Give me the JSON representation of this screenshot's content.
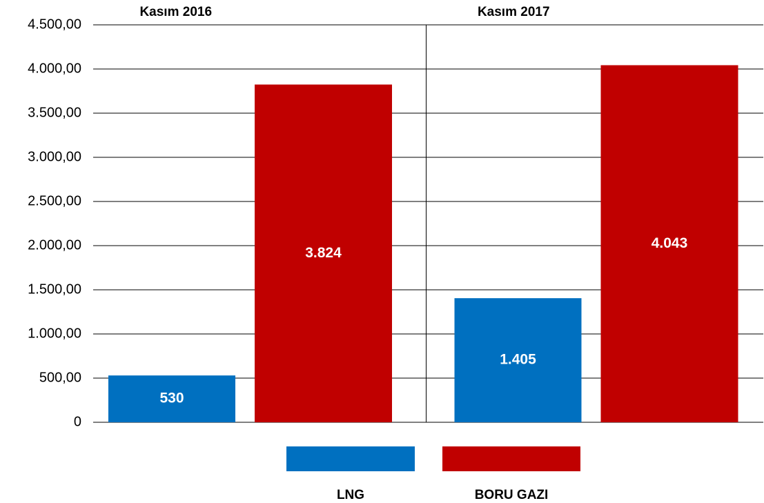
{
  "chart_data": {
    "type": "bar",
    "categories": [
      "Kasım 2016",
      "Kasım 2017"
    ],
    "series": [
      {
        "name": "LNG",
        "color": "#0070c0",
        "values": [
          530,
          1405
        ],
        "value_labels": [
          "530",
          "1.405"
        ]
      },
      {
        "name": "BORU GAZI",
        "color": "#c00000",
        "values": [
          3824,
          4043
        ],
        "value_labels": [
          "3.824",
          "4.043"
        ]
      }
    ],
    "ylim": [
      0,
      4500
    ],
    "yticks": [
      0,
      {
        "value": 500,
        "label": "500,00"
      },
      {
        "value": 1000,
        "label": "1.000,00"
      },
      {
        "value": 1500,
        "label": "1.500,00"
      },
      {
        "value": 2000,
        "label": "2.000,00"
      },
      {
        "value": 2500,
        "label": "2.500,00"
      },
      {
        "value": 3000,
        "label": "3.000,00"
      },
      {
        "value": 3500,
        "label": "3.500,00"
      },
      {
        "value": 4000,
        "label": "4.000,00"
      },
      {
        "value": 4500,
        "label": "4.500,00"
      }
    ],
    "grid": true
  }
}
